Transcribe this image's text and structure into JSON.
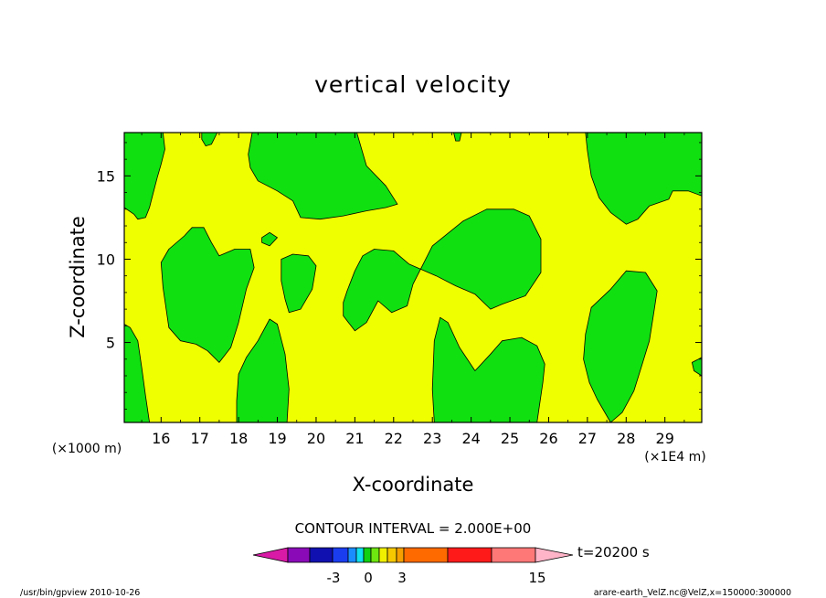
{
  "chart_data": {
    "type": "contour",
    "title": "vertical velocity",
    "xlabel": "X-coordinate",
    "ylabel": "Z-coordinate",
    "x_unit_label": "(×1E4 m)",
    "y_unit_label": "(×1000 m)",
    "xlim": [
      15.05,
      29.95
    ],
    "ylim": [
      0.2,
      17.6
    ],
    "x_ticks": [
      16,
      17,
      18,
      19,
      20,
      21,
      22,
      23,
      24,
      25,
      26,
      27,
      28,
      29
    ],
    "y_ticks": [
      5,
      10,
      15
    ],
    "contour_interval_text": "CONTOUR INTERVAL = 2.000E+00",
    "time_text": "t=20200 s",
    "colorbar": {
      "labels": [
        "-3",
        "0",
        "3",
        "15"
      ],
      "colors": [
        "#d81aa6",
        "#8a0ab8",
        "#1010b0",
        "#1a3df0",
        "#1a8cff",
        "#10e0f0",
        "#10d010",
        "#6ee610",
        "#f0f000",
        "#f5c800",
        "#f5a000",
        "#ff6a00",
        "#ff1a1a",
        "#ff7878",
        "#ffb4c8"
      ]
    },
    "fill_colors": {
      "background": "#f0ff00",
      "regions": "#10e010"
    },
    "regions": [
      {
        "name": "top-left",
        "points": [
          [
            15.05,
            17.6
          ],
          [
            16.05,
            17.6
          ],
          [
            16.1,
            16.6
          ],
          [
            16.0,
            15.7
          ],
          [
            15.9,
            14.9
          ],
          [
            15.8,
            14.0
          ],
          [
            15.7,
            13.1
          ],
          [
            15.6,
            12.5
          ],
          [
            15.4,
            12.4
          ],
          [
            15.3,
            12.7
          ],
          [
            15.05,
            13.1
          ]
        ]
      },
      {
        "name": "top-left-small",
        "points": [
          [
            17.05,
            17.6
          ],
          [
            17.45,
            17.6
          ],
          [
            17.3,
            16.9
          ],
          [
            17.15,
            16.8
          ],
          [
            17.05,
            17.2
          ]
        ]
      },
      {
        "name": "top-center",
        "points": [
          [
            18.35,
            17.6
          ],
          [
            21.05,
            17.6
          ],
          [
            21.3,
            15.6
          ],
          [
            21.8,
            14.4
          ],
          [
            22.1,
            13.3
          ],
          [
            21.8,
            13.1
          ],
          [
            21.3,
            12.9
          ],
          [
            20.7,
            12.6
          ],
          [
            20.1,
            12.4
          ],
          [
            19.6,
            12.5
          ],
          [
            19.4,
            13.5
          ],
          [
            19.0,
            14.1
          ],
          [
            18.5,
            14.7
          ],
          [
            18.3,
            15.5
          ],
          [
            18.25,
            16.3
          ]
        ]
      },
      {
        "name": "top-center-small",
        "points": [
          [
            23.55,
            17.6
          ],
          [
            23.75,
            17.6
          ],
          [
            23.7,
            17.1
          ],
          [
            23.6,
            17.1
          ]
        ]
      },
      {
        "name": "top-right",
        "points": [
          [
            26.95,
            17.6
          ],
          [
            29.95,
            17.6
          ],
          [
            29.95,
            13.8
          ],
          [
            29.6,
            14.1
          ],
          [
            29.2,
            14.1
          ],
          [
            29.1,
            13.6
          ],
          [
            28.6,
            13.2
          ],
          [
            28.3,
            12.4
          ],
          [
            28.0,
            12.1
          ],
          [
            27.6,
            12.8
          ],
          [
            27.3,
            13.7
          ],
          [
            27.1,
            15.0
          ],
          [
            27.0,
            16.5
          ]
        ]
      },
      {
        "name": "left-middle",
        "points": [
          [
            16.8,
            11.9
          ],
          [
            17.1,
            11.9
          ],
          [
            17.3,
            11.0
          ],
          [
            17.5,
            10.2
          ],
          [
            17.9,
            10.6
          ],
          [
            18.3,
            10.6
          ],
          [
            18.4,
            9.5
          ],
          [
            18.2,
            8.2
          ],
          [
            18.0,
            6.2
          ],
          [
            17.8,
            4.7
          ],
          [
            17.5,
            3.8
          ],
          [
            17.2,
            4.5
          ],
          [
            16.9,
            4.9
          ],
          [
            16.5,
            5.1
          ],
          [
            16.2,
            5.9
          ],
          [
            16.05,
            8.3
          ],
          [
            16.0,
            9.8
          ],
          [
            16.2,
            10.6
          ],
          [
            16.6,
            11.4
          ]
        ]
      },
      {
        "name": "tiny-blob",
        "points": [
          [
            18.6,
            11.3
          ],
          [
            18.8,
            11.6
          ],
          [
            19.0,
            11.3
          ],
          [
            18.8,
            10.8
          ],
          [
            18.6,
            11.0
          ]
        ]
      },
      {
        "name": "small-blob",
        "points": [
          [
            19.1,
            10.0
          ],
          [
            19.4,
            10.3
          ],
          [
            19.8,
            10.2
          ],
          [
            20.0,
            9.6
          ],
          [
            19.9,
            8.2
          ],
          [
            19.6,
            7.0
          ],
          [
            19.3,
            6.8
          ],
          [
            19.2,
            7.6
          ],
          [
            19.1,
            8.7
          ]
        ]
      },
      {
        "name": "bottom-left",
        "points": [
          [
            15.05,
            6.1
          ],
          [
            15.2,
            5.9
          ],
          [
            15.4,
            5.1
          ],
          [
            15.5,
            3.5
          ],
          [
            15.6,
            1.8
          ],
          [
            15.7,
            0.2
          ],
          [
            15.05,
            0.2
          ]
        ]
      },
      {
        "name": "bottom-left-small",
        "points": [
          [
            17.95,
            0.2
          ],
          [
            19.25,
            0.2
          ],
          [
            19.3,
            2.2
          ],
          [
            19.2,
            4.3
          ],
          [
            19.0,
            6.1
          ],
          [
            18.8,
            6.4
          ],
          [
            18.5,
            5.1
          ],
          [
            18.2,
            4.1
          ],
          [
            18.0,
            3.1
          ],
          [
            17.95,
            1.5
          ]
        ]
      },
      {
        "name": "center",
        "points": [
          [
            21.0,
            5.7
          ],
          [
            21.3,
            6.2
          ],
          [
            21.6,
            7.5
          ],
          [
            21.95,
            6.8
          ],
          [
            22.35,
            7.2
          ],
          [
            22.5,
            8.5
          ],
          [
            23.0,
            10.8
          ],
          [
            23.8,
            12.3
          ],
          [
            24.4,
            13.0
          ],
          [
            25.1,
            13.0
          ],
          [
            25.5,
            12.6
          ],
          [
            25.8,
            11.2
          ],
          [
            25.8,
            9.2
          ],
          [
            25.4,
            7.8
          ],
          [
            24.8,
            7.3
          ],
          [
            24.5,
            7.0
          ],
          [
            24.1,
            7.9
          ],
          [
            23.6,
            8.4
          ],
          [
            23.1,
            9.0
          ],
          [
            22.4,
            9.7
          ],
          [
            22.0,
            10.5
          ],
          [
            21.5,
            10.6
          ],
          [
            21.2,
            10.2
          ],
          [
            21.0,
            9.3
          ],
          [
            20.8,
            8.1
          ],
          [
            20.7,
            7.4
          ],
          [
            20.7,
            6.6
          ]
        ]
      },
      {
        "name": "center-lower",
        "points": [
          [
            23.05,
            0.2
          ],
          [
            25.7,
            0.2
          ],
          [
            25.85,
            2.6
          ],
          [
            25.9,
            3.7
          ],
          [
            25.7,
            4.8
          ],
          [
            25.3,
            5.3
          ],
          [
            24.8,
            5.1
          ],
          [
            24.5,
            4.3
          ],
          [
            24.1,
            3.3
          ],
          [
            23.7,
            4.7
          ],
          [
            23.4,
            6.2
          ],
          [
            23.2,
            6.5
          ],
          [
            23.05,
            5.1
          ],
          [
            23.0,
            2.2
          ]
        ]
      },
      {
        "name": "right-blob",
        "points": [
          [
            27.6,
            0.2
          ],
          [
            27.9,
            0.8
          ],
          [
            28.2,
            2.1
          ],
          [
            28.4,
            3.6
          ],
          [
            28.6,
            5.1
          ],
          [
            28.7,
            6.6
          ],
          [
            28.8,
            8.1
          ],
          [
            28.5,
            9.2
          ],
          [
            28.0,
            9.3
          ],
          [
            27.6,
            8.2
          ],
          [
            27.1,
            7.1
          ],
          [
            26.95,
            5.5
          ],
          [
            26.9,
            4.0
          ],
          [
            27.05,
            2.6
          ],
          [
            27.25,
            1.6
          ]
        ]
      },
      {
        "name": "right-edge",
        "points": [
          [
            29.95,
            3.0
          ],
          [
            29.75,
            3.3
          ],
          [
            29.7,
            3.8
          ],
          [
            29.95,
            4.1
          ]
        ]
      }
    ]
  },
  "footer": {
    "left": "/usr/bin/gpview  2010-10-26",
    "right": "arare-earth_VelZ.nc@VelZ,x=150000:300000"
  }
}
